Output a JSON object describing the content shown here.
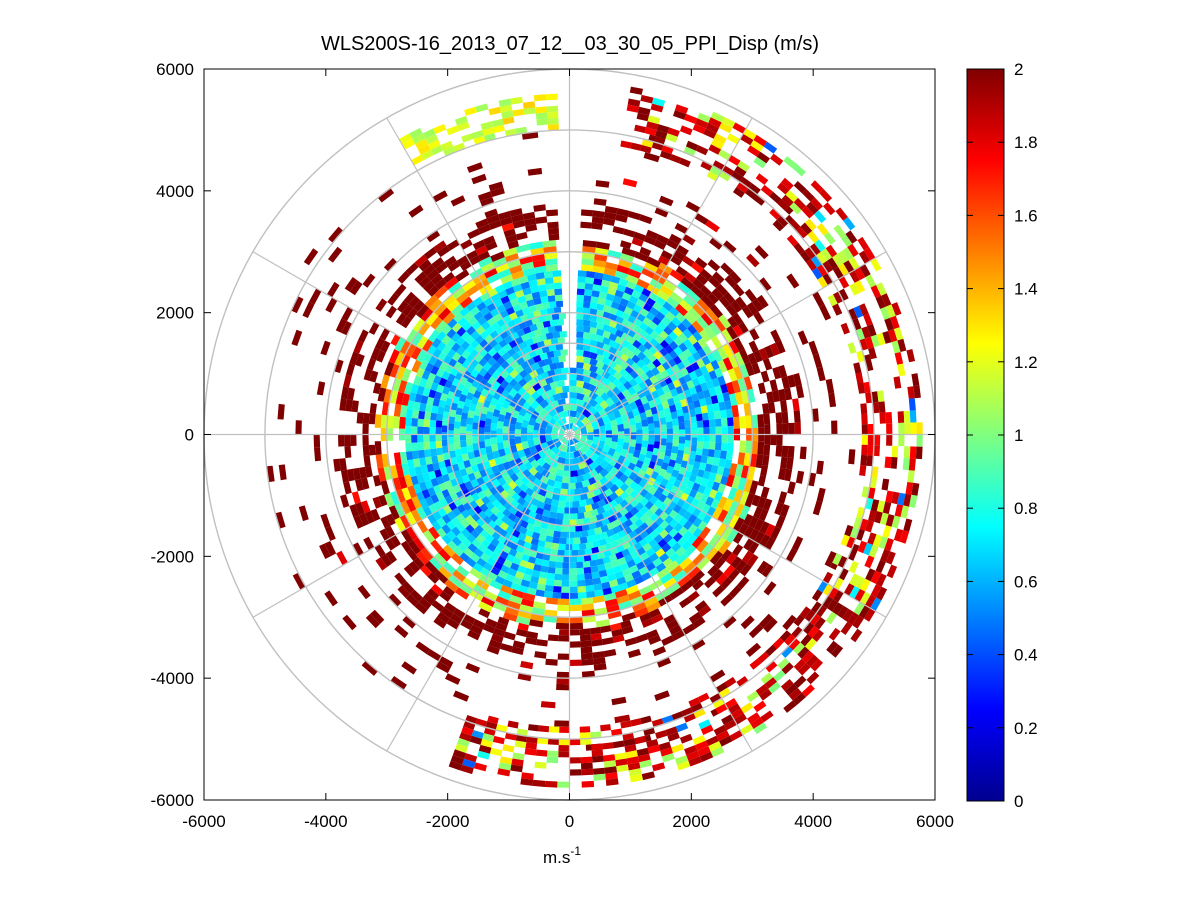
{
  "chart_data": {
    "type": "heatmap",
    "subtype": "polar-ppi",
    "title": "WLS200S-16_2013_07_12__03_30_05_PPI_Disp (m/s)",
    "xlabel": "m.s",
    "xlabel_superscript": "-1",
    "ylabel": "",
    "xlim": [
      -6000,
      6000
    ],
    "ylim": [
      -6000,
      6000
    ],
    "xticks": [
      -6000,
      -4000,
      -2000,
      0,
      2000,
      4000,
      6000
    ],
    "yticks": [
      6000,
      4000,
      2000,
      0,
      -2000,
      -4000,
      -6000
    ],
    "xtick_labels": [
      "-6000",
      "-4000",
      "-2000",
      "0",
      "2000",
      "4000",
      "6000"
    ],
    "ytick_labels": [
      "6000",
      "4000",
      "2000",
      "0",
      "-2000",
      "-4000",
      "-6000"
    ],
    "polar_grid": {
      "range_rings": [
        500,
        1000,
        1500,
        2000,
        3000,
        4000,
        5000,
        6000
      ],
      "spoke_angles_deg": [
        0,
        30,
        60,
        90,
        120,
        150,
        180,
        210,
        240,
        270,
        300,
        330
      ]
    },
    "colorbar": {
      "colormap": "jet",
      "clim": [
        0,
        2
      ],
      "ticks": [
        0,
        0.2,
        0.4,
        0.6,
        0.8,
        1,
        1.2,
        1.4,
        1.6,
        1.8,
        2
      ],
      "tick_labels": [
        "0",
        "0.2",
        "0.4",
        "0.6",
        "0.8",
        "1",
        "1.2",
        "1.4",
        "1.6",
        "1.8",
        "2"
      ]
    },
    "field_description": {
      "inner_zone": {
        "range_m": [
          0,
          2700
        ],
        "typical_value": 0.7,
        "spread": 0.25
      },
      "transition_ring": {
        "range_m": [
          2700,
          3200
        ],
        "typical_value": 1.3,
        "spread": 0.5
      },
      "outer_scatter": {
        "range_m": [
          3200,
          3800
        ],
        "typical_value": 2.0,
        "coverage": "dense"
      },
      "far_arcs": [
        {
          "range_m": [
            4800,
            5800
          ],
          "azimuth_deg": [
            10,
            200
          ],
          "typical_value": 1.9
        },
        {
          "range_m": [
            5000,
            5600
          ],
          "azimuth_deg": [
            330,
            358
          ],
          "typical_value": 1.2
        }
      ],
      "no_data_azimuth_deg": [
        -3,
        3
      ]
    }
  }
}
